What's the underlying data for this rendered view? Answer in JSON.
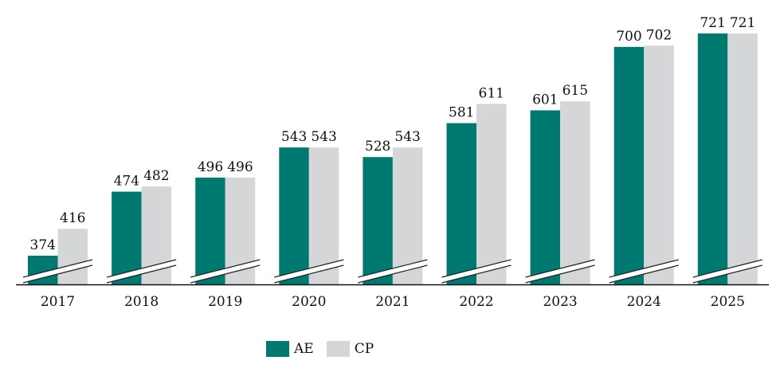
{
  "chart_data": {
    "type": "bar",
    "title": "",
    "xlabel": "",
    "ylabel": "",
    "categories": [
      "2017",
      "2018",
      "2019",
      "2020",
      "2021",
      "2022",
      "2023",
      "2024",
      "2025"
    ],
    "series": [
      {
        "name": "AE",
        "color": "#007a70",
        "values": [
          374,
          474,
          496,
          543,
          528,
          581,
          601,
          700,
          721
        ]
      },
      {
        "name": "CP",
        "color": "#d5d6d8",
        "values": [
          416,
          482,
          496,
          543,
          543,
          611,
          615,
          702,
          721
        ]
      }
    ],
    "ylim": [
      329,
      740
    ],
    "axis_break": true,
    "grid": false,
    "legend_position": "bottom"
  }
}
